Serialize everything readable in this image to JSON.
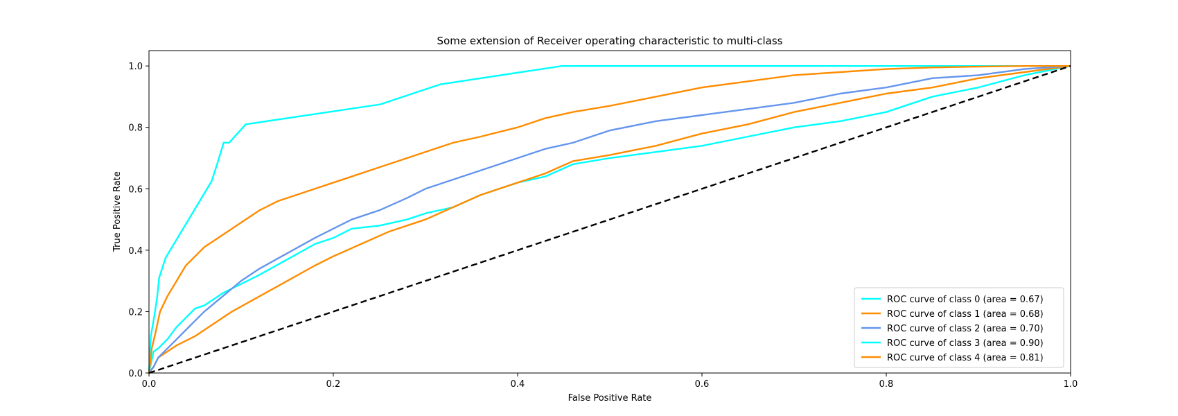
{
  "chart_data": {
    "type": "line",
    "title": "Some extension of Receiver operating characteristic to multi-class",
    "xlabel": "False Positive Rate",
    "ylabel": "True Positive Rate",
    "xlim": [
      0.0,
      1.0
    ],
    "ylim": [
      0.0,
      1.05
    ],
    "x_ticks": [
      "0.0",
      "0.2",
      "0.4",
      "0.6",
      "0.8",
      "1.0"
    ],
    "y_ticks": [
      "0.0",
      "0.2",
      "0.4",
      "0.6",
      "0.8",
      "1.0"
    ],
    "grid": false,
    "legend_position": "lower-right",
    "series": [
      {
        "name": "ROC curve of class 0 (area = 0.67)",
        "color": "#00ffff",
        "x": [
          0,
          0.005,
          0.01,
          0.02,
          0.03,
          0.04,
          0.05,
          0.06,
          0.08,
          0.1,
          0.12,
          0.15,
          0.18,
          0.2,
          0.22,
          0.25,
          0.28,
          0.3,
          0.33,
          0.36,
          0.4,
          0.43,
          0.46,
          0.5,
          0.55,
          0.6,
          0.65,
          0.7,
          0.75,
          0.8,
          0.85,
          0.9,
          0.95,
          1.0
        ],
        "y": [
          0,
          0.07,
          0.08,
          0.11,
          0.15,
          0.18,
          0.21,
          0.22,
          0.26,
          0.29,
          0.32,
          0.37,
          0.42,
          0.44,
          0.47,
          0.48,
          0.5,
          0.52,
          0.54,
          0.58,
          0.62,
          0.64,
          0.68,
          0.7,
          0.72,
          0.74,
          0.77,
          0.8,
          0.82,
          0.85,
          0.9,
          0.93,
          0.97,
          1.0
        ]
      },
      {
        "name": "ROC curve of class 1 (area = 0.68)",
        "color": "#ff8c00",
        "x": [
          0,
          0.005,
          0.01,
          0.02,
          0.03,
          0.05,
          0.07,
          0.09,
          0.12,
          0.15,
          0.18,
          0.2,
          0.23,
          0.26,
          0.3,
          0.33,
          0.36,
          0.4,
          0.43,
          0.46,
          0.5,
          0.55,
          0.6,
          0.65,
          0.7,
          0.75,
          0.8,
          0.85,
          0.9,
          0.95,
          1.0
        ],
        "y": [
          0,
          0.02,
          0.05,
          0.07,
          0.09,
          0.12,
          0.16,
          0.2,
          0.25,
          0.3,
          0.35,
          0.38,
          0.42,
          0.46,
          0.5,
          0.54,
          0.58,
          0.62,
          0.65,
          0.69,
          0.71,
          0.74,
          0.78,
          0.81,
          0.85,
          0.88,
          0.91,
          0.93,
          0.96,
          0.98,
          1.0
        ]
      },
      {
        "name": "ROC curve of class 2 (area = 0.70)",
        "color": "#6495ed",
        "x": [
          0,
          0.005,
          0.01,
          0.02,
          0.03,
          0.04,
          0.05,
          0.06,
          0.08,
          0.1,
          0.12,
          0.15,
          0.18,
          0.2,
          0.22,
          0.25,
          0.28,
          0.3,
          0.33,
          0.36,
          0.4,
          0.43,
          0.46,
          0.5,
          0.55,
          0.6,
          0.65,
          0.7,
          0.75,
          0.8,
          0.85,
          0.9,
          0.95,
          1.0
        ],
        "y": [
          0,
          0.02,
          0.05,
          0.08,
          0.11,
          0.14,
          0.17,
          0.2,
          0.25,
          0.3,
          0.34,
          0.39,
          0.44,
          0.47,
          0.5,
          0.53,
          0.57,
          0.6,
          0.63,
          0.66,
          0.7,
          0.73,
          0.75,
          0.79,
          0.82,
          0.84,
          0.86,
          0.88,
          0.91,
          0.93,
          0.96,
          0.97,
          0.99,
          1.0
        ]
      },
      {
        "name": "ROC curve of class 3 (area = 0.90)",
        "color": "#00ffff",
        "x": [
          0,
          0.002,
          0.006,
          0.009,
          0.011,
          0.018,
          0.031,
          0.043,
          0.068,
          0.075,
          0.081,
          0.087,
          0.105,
          0.251,
          0.316,
          0.448,
          1.0
        ],
        "y": [
          0,
          0.12,
          0.19,
          0.25,
          0.31,
          0.375,
          0.44,
          0.5,
          0.625,
          0.69,
          0.75,
          0.75,
          0.81,
          0.875,
          0.94,
          1.0,
          1.0
        ]
      },
      {
        "name": "ROC curve of class 4 (area = 0.81)",
        "color": "#ff8c00",
        "x": [
          0,
          0.003,
          0.007,
          0.012,
          0.02,
          0.03,
          0.04,
          0.05,
          0.06,
          0.07,
          0.08,
          0.09,
          0.1,
          0.12,
          0.14,
          0.16,
          0.18,
          0.2,
          0.22,
          0.25,
          0.28,
          0.3,
          0.33,
          0.36,
          0.4,
          0.43,
          0.46,
          0.5,
          0.55,
          0.6,
          0.65,
          0.7,
          0.75,
          0.8,
          0.85,
          0.9,
          0.95,
          1.0
        ],
        "y": [
          0,
          0.08,
          0.13,
          0.2,
          0.25,
          0.3,
          0.35,
          0.38,
          0.41,
          0.43,
          0.45,
          0.47,
          0.49,
          0.53,
          0.56,
          0.58,
          0.6,
          0.62,
          0.64,
          0.67,
          0.7,
          0.72,
          0.75,
          0.77,
          0.8,
          0.83,
          0.85,
          0.87,
          0.9,
          0.93,
          0.95,
          0.97,
          0.98,
          0.99,
          0.995,
          0.998,
          1.0,
          1.0
        ]
      },
      {
        "name": "",
        "color": "#000000",
        "dashed": true,
        "x": [
          0,
          1
        ],
        "y": [
          0,
          1
        ]
      }
    ]
  }
}
